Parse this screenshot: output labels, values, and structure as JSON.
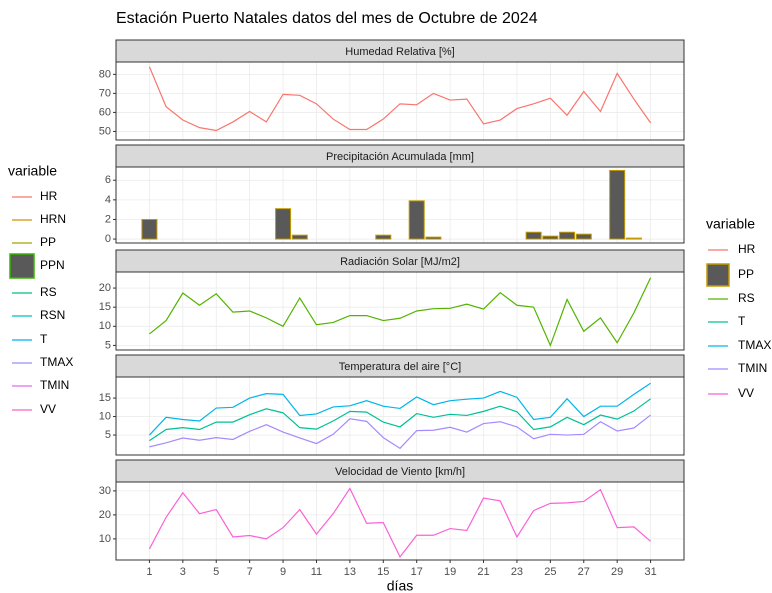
{
  "title": "Estación Puerto Natales datos del mes de Octubre de 2024",
  "x_axis": {
    "label": "días",
    "lim": [
      -1,
      33
    ],
    "ticks": [
      1,
      3,
      5,
      7,
      9,
      11,
      13,
      15,
      17,
      19,
      21,
      23,
      25,
      27,
      29,
      31
    ]
  },
  "legends": [
    {
      "title": "variable",
      "items": [
        {
          "name": "HR",
          "color": "#F8766D",
          "kind": "line"
        },
        {
          "name": "HRN",
          "color": "#D89000",
          "kind": "line"
        },
        {
          "name": "PP",
          "color": "#A3A500",
          "kind": "line"
        },
        {
          "name": "PPN",
          "color": "#39B600",
          "fill": "#595959",
          "kind": "box"
        },
        {
          "name": "RS",
          "color": "#00BF7D",
          "kind": "line"
        },
        {
          "name": "RSN",
          "color": "#00BFC4",
          "kind": "line"
        },
        {
          "name": "T",
          "color": "#00B0F6",
          "kind": "line"
        },
        {
          "name": "TMAX",
          "color": "#9590FF",
          "kind": "line"
        },
        {
          "name": "TMIN",
          "color": "#E76BF3",
          "kind": "line"
        },
        {
          "name": "VV",
          "color": "#FF62BC",
          "kind": "line"
        }
      ]
    },
    {
      "title": "variable"
    }
  ],
  "chart_data": [
    {
      "type": "line",
      "title": "Humedad Relativa [%]",
      "x": [
        1,
        2,
        3,
        4,
        5,
        6,
        7,
        8,
        9,
        10,
        11,
        12,
        13,
        14,
        15,
        16,
        17,
        18,
        19,
        20,
        21,
        22,
        23,
        24,
        25,
        26,
        27,
        28,
        29,
        30,
        31
      ],
      "ylim": [
        45.5,
        86.5
      ],
      "yticks": [
        50,
        60,
        70,
        80
      ],
      "series": [
        {
          "name": "HR",
          "color": "#F8766D",
          "values": [
            84,
            63,
            56,
            52,
            50.5,
            55,
            60.5,
            55,
            69.5,
            69,
            64.5,
            56.5,
            51,
            51,
            56.5,
            64.5,
            64,
            70,
            66.5,
            67,
            54,
            56,
            62,
            64.5,
            67.5,
            58.5,
            71,
            60.5,
            80.5,
            67,
            54.5
          ]
        }
      ]
    },
    {
      "type": "bar",
      "title": "Precipitación Acumulada [mm]",
      "x": [
        1,
        2,
        3,
        4,
        5,
        6,
        7,
        8,
        9,
        10,
        11,
        12,
        13,
        14,
        15,
        16,
        17,
        18,
        19,
        20,
        21,
        22,
        23,
        24,
        25,
        26,
        27,
        28,
        29,
        30,
        31
      ],
      "ylim": [
        -0.4,
        7.35
      ],
      "yticks": [
        0,
        2,
        4,
        6
      ],
      "series": [
        {
          "name": "PP",
          "color": "#C49A00",
          "fill": "#595959",
          "values": [
            2.0,
            0,
            0,
            0,
            0,
            0,
            0,
            0,
            3.1,
            0.4,
            0,
            0,
            0,
            0,
            0.4,
            0,
            3.9,
            0.2,
            0,
            0,
            0,
            0,
            0,
            0.7,
            0.3,
            0.7,
            0.5,
            0,
            7.0,
            0.1,
            0
          ]
        }
      ]
    },
    {
      "type": "line",
      "title": "Radiación Solar [MJ/m2]",
      "x": [
        1,
        2,
        3,
        4,
        5,
        6,
        7,
        8,
        9,
        10,
        11,
        12,
        13,
        14,
        15,
        16,
        17,
        18,
        19,
        20,
        21,
        22,
        23,
        24,
        25,
        26,
        27,
        28,
        29,
        30,
        31
      ],
      "ylim": [
        3.8,
        24.2
      ],
      "yticks": [
        5,
        10,
        15,
        20
      ],
      "series": [
        {
          "name": "RS",
          "color": "#53B400",
          "values": [
            8,
            11.5,
            18.7,
            15.5,
            18.5,
            13.7,
            14,
            12.2,
            10,
            17.4,
            10.4,
            11,
            12.8,
            12.8,
            11.5,
            12.1,
            14,
            14.6,
            14.7,
            15.8,
            14.5,
            18.8,
            15.5,
            15,
            5,
            17,
            8.7,
            12.2,
            5.7,
            13.5,
            22.7
          ]
        }
      ]
    },
    {
      "type": "line",
      "title": "Temperatura del aire [°C]",
      "x": [
        1,
        2,
        3,
        4,
        5,
        6,
        7,
        8,
        9,
        10,
        11,
        12,
        13,
        14,
        15,
        16,
        17,
        18,
        19,
        20,
        21,
        22,
        23,
        24,
        25,
        26,
        27,
        28,
        29,
        30,
        31
      ],
      "ylim": [
        -0.4,
        20.7
      ],
      "yticks": [
        5,
        10,
        15
      ],
      "series": [
        {
          "name": "T",
          "color": "#00C094",
          "values": [
            3.5,
            6.5,
            7,
            6.5,
            8.5,
            8.5,
            10.5,
            12.1,
            11,
            7,
            6.6,
            8.8,
            11.4,
            11.2,
            8.5,
            7.2,
            10.8,
            9.8,
            10.6,
            10.3,
            11.4,
            12.8,
            11.3,
            6.5,
            7.2,
            9.8,
            7.8,
            10.4,
            9.3,
            11.5,
            14.8
          ]
        },
        {
          "name": "TMAX",
          "color": "#00B6EB",
          "values": [
            5,
            9.8,
            9.2,
            8.8,
            12.3,
            12.5,
            15,
            16.2,
            16,
            10.3,
            10.7,
            12.6,
            12.9,
            14.3,
            12.8,
            12.2,
            15.3,
            13.2,
            14.3,
            14.7,
            15,
            16.8,
            15.2,
            9.2,
            9.8,
            14.8,
            10,
            12.8,
            12.8,
            16,
            19
          ]
        },
        {
          "name": "TMIN",
          "color": "#A58AFF",
          "values": [
            1.8,
            2.9,
            4.2,
            3.6,
            4.3,
            3.8,
            6,
            7.8,
            5.8,
            4.2,
            2.7,
            5.2,
            9.4,
            8.7,
            4.3,
            1.4,
            6.2,
            6.3,
            7.1,
            5.8,
            8.1,
            8.6,
            7.2,
            4,
            5.2,
            5,
            5.2,
            8.6,
            6.1,
            6.9,
            10.4
          ]
        }
      ]
    },
    {
      "type": "line",
      "title": "Velocidad de Viento [km/h]",
      "x": [
        1,
        2,
        3,
        4,
        5,
        6,
        7,
        8,
        9,
        10,
        11,
        12,
        13,
        14,
        15,
        16,
        17,
        18,
        19,
        20,
        21,
        22,
        23,
        24,
        25,
        26,
        27,
        28,
        29,
        30,
        31
      ],
      "ylim": [
        1.2,
        33.7
      ],
      "yticks": [
        10,
        20,
        30
      ],
      "series": [
        {
          "name": "VV",
          "color": "#FB61D7",
          "values": [
            5.8,
            19,
            29.2,
            20.5,
            22.2,
            10.8,
            11.4,
            10,
            14.7,
            22.2,
            12,
            20.5,
            31,
            16.5,
            16.8,
            2.5,
            11.5,
            11.5,
            14.3,
            13.5,
            27,
            25.8,
            10.8,
            21.8,
            24.8,
            25,
            25.6,
            30.5,
            14.7,
            15,
            9
          ]
        }
      ]
    }
  ]
}
